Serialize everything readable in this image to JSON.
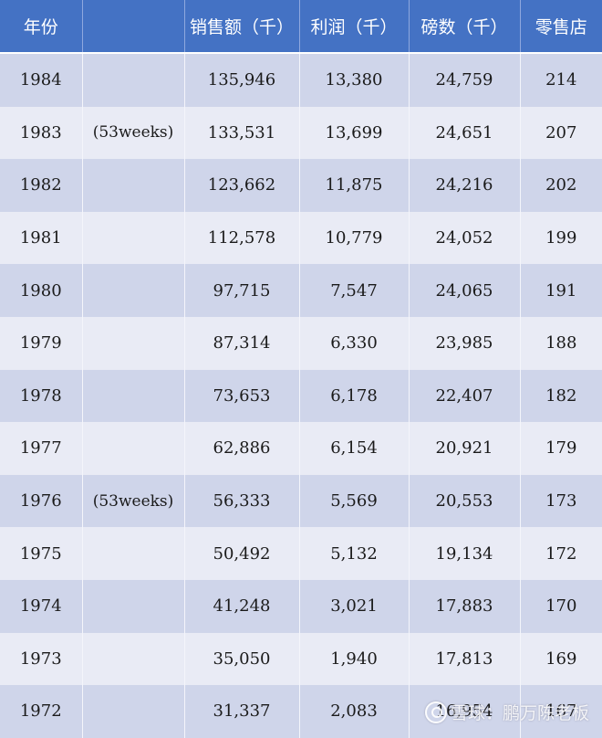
{
  "table": {
    "headers": [
      "年份",
      "",
      "销售额（千）",
      "利润（千）",
      "磅数（千）",
      "零售店"
    ],
    "rows": [
      {
        "year": "1984",
        "note": "",
        "sales": "135,946",
        "profit": "13,380",
        "pounds": "24,759",
        "stores": "214"
      },
      {
        "year": "1983",
        "note": "(53weeks)",
        "sales": "133,531",
        "profit": "13,699",
        "pounds": "24,651",
        "stores": "207"
      },
      {
        "year": "1982",
        "note": "",
        "sales": "123,662",
        "profit": "11,875",
        "pounds": "24,216",
        "stores": "202"
      },
      {
        "year": "1981",
        "note": "",
        "sales": "112,578",
        "profit": "10,779",
        "pounds": "24,052",
        "stores": "199"
      },
      {
        "year": "1980",
        "note": "",
        "sales": "97,715",
        "profit": "7,547",
        "pounds": "24,065",
        "stores": "191"
      },
      {
        "year": "1979",
        "note": "",
        "sales": "87,314",
        "profit": "6,330",
        "pounds": "23,985",
        "stores": "188"
      },
      {
        "year": "1978",
        "note": "",
        "sales": "73,653",
        "profit": "6,178",
        "pounds": "22,407",
        "stores": "182"
      },
      {
        "year": "1977",
        "note": "",
        "sales": "62,886",
        "profit": "6,154",
        "pounds": "20,921",
        "stores": "179"
      },
      {
        "year": "1976",
        "note": "(53weeks)",
        "sales": "56,333",
        "profit": "5,569",
        "pounds": "20,553",
        "stores": "173"
      },
      {
        "year": "1975",
        "note": "",
        "sales": "50,492",
        "profit": "5,132",
        "pounds": "19,134",
        "stores": "172"
      },
      {
        "year": "1974",
        "note": "",
        "sales": "41,248",
        "profit": "3,021",
        "pounds": "17,883",
        "stores": "170"
      },
      {
        "year": "1973",
        "note": "",
        "sales": "35,050",
        "profit": "1,940",
        "pounds": "17,813",
        "stores": "169"
      },
      {
        "year": "1972",
        "note": "",
        "sales": "31,337",
        "profit": "2,083",
        "pounds": "16,954",
        "stores": "167"
      }
    ]
  },
  "watermark": {
    "text": "雪球：鹏万陈老板",
    "icon": "snowball-logo-icon"
  },
  "colors": {
    "header_bg": "#4472c4",
    "row_odd": "#cfd5ea",
    "row_even": "#e9ebf5"
  }
}
